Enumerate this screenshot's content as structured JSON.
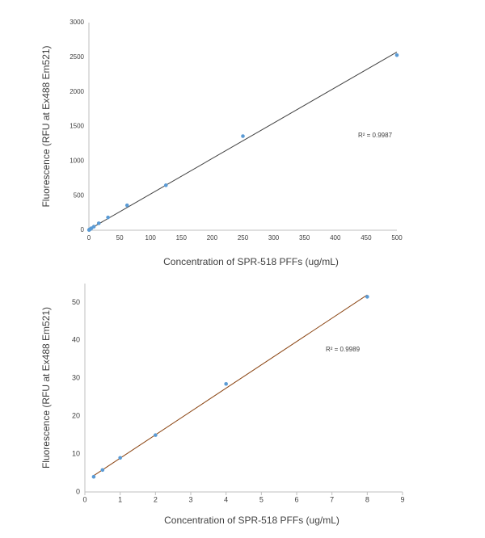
{
  "chart_data": [
    {
      "type": "scatter",
      "x_label": "Concentration of SPR-518 PFFs (ug/mL)",
      "y_label": "Fluorescence (RFU at Ex488 Em521)",
      "annotation": "R² = 0.9987",
      "x": [
        0.25,
        0.5,
        1,
        2,
        4,
        8,
        16,
        31,
        62,
        125,
        250,
        500
      ],
      "series": [
        {
          "color": "#5b9bd5",
          "values": [
            4,
            6,
            9,
            15,
            28.5,
            51.5,
            100,
            185,
            360,
            650,
            1360,
            2530
          ]
        }
      ],
      "trendline": {
        "color": "#404040",
        "x": [
          0,
          500
        ],
        "values": [
          10,
          2575
        ]
      },
      "xlim": [
        0,
        500
      ],
      "xticks": [
        0,
        50,
        100,
        150,
        200,
        250,
        300,
        350,
        400,
        450,
        500
      ],
      "ylim": [
        0,
        3000
      ],
      "yticks": [
        0,
        500,
        1000,
        1500,
        2000,
        2500,
        3000
      ],
      "grid": false
    },
    {
      "type": "scatter",
      "x_label": "Concentration of SPR-518 PFFs (ug/mL)",
      "y_label": "Fluorescence (RFU at Ex488 Em521)",
      "annotation": "R² = 0.9989",
      "x": [
        0.25,
        0.5,
        1,
        2,
        4,
        8
      ],
      "series": [
        {
          "color": "#5b9bd5",
          "values": [
            4,
            5.8,
            9,
            15,
            28.5,
            51.5
          ]
        }
      ],
      "trendline": {
        "color": "#8b4513",
        "x": [
          0.25,
          8
        ],
        "values": [
          4.3,
          52
        ]
      },
      "xlim": [
        0,
        9
      ],
      "xticks": [
        0,
        1,
        2,
        3,
        4,
        5,
        6,
        7,
        8,
        9
      ],
      "ylim": [
        0,
        55
      ],
      "yticks": [
        0,
        10,
        20,
        30,
        40,
        50
      ],
      "grid": false
    }
  ]
}
